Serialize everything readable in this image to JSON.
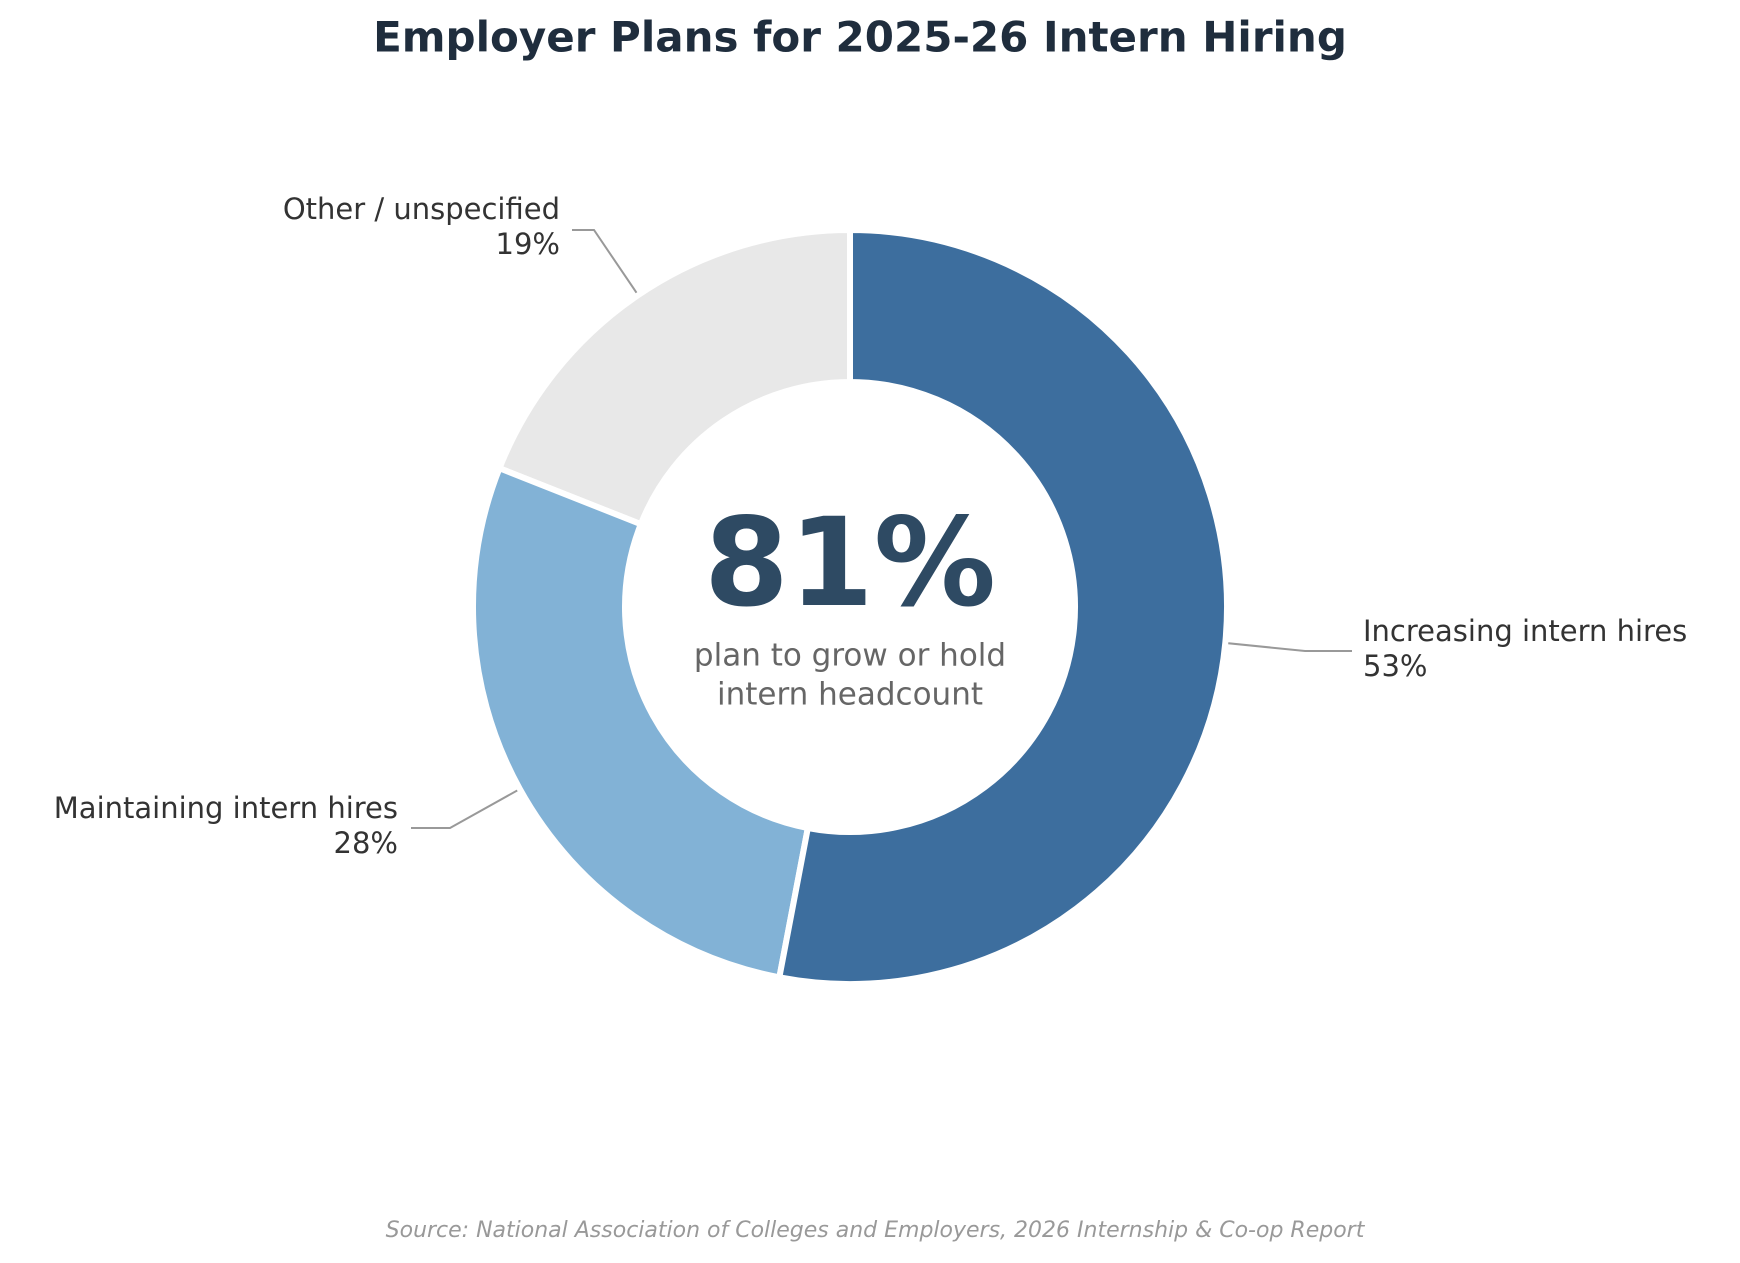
{
  "chart_data": {
    "type": "pie",
    "title": "Employer Plans for 2025-26 Intern Hiring",
    "categories": [
      "Increasing intern hires",
      "Maintaining intern hires",
      "Other / unspecified"
    ],
    "values": [
      53,
      28,
      19
    ],
    "value_labels": [
      "53%",
      "28%",
      "19%"
    ],
    "colors": [
      "#3d6e9e",
      "#82b2d6",
      "#e8e8e8"
    ],
    "donut": true,
    "center_label": "81%",
    "center_note": [
      "plan to grow or hold",
      "intern headcount"
    ],
    "source": "Source: National Association of Colleges and Employers, 2026 Internship & Co-op Report"
  }
}
